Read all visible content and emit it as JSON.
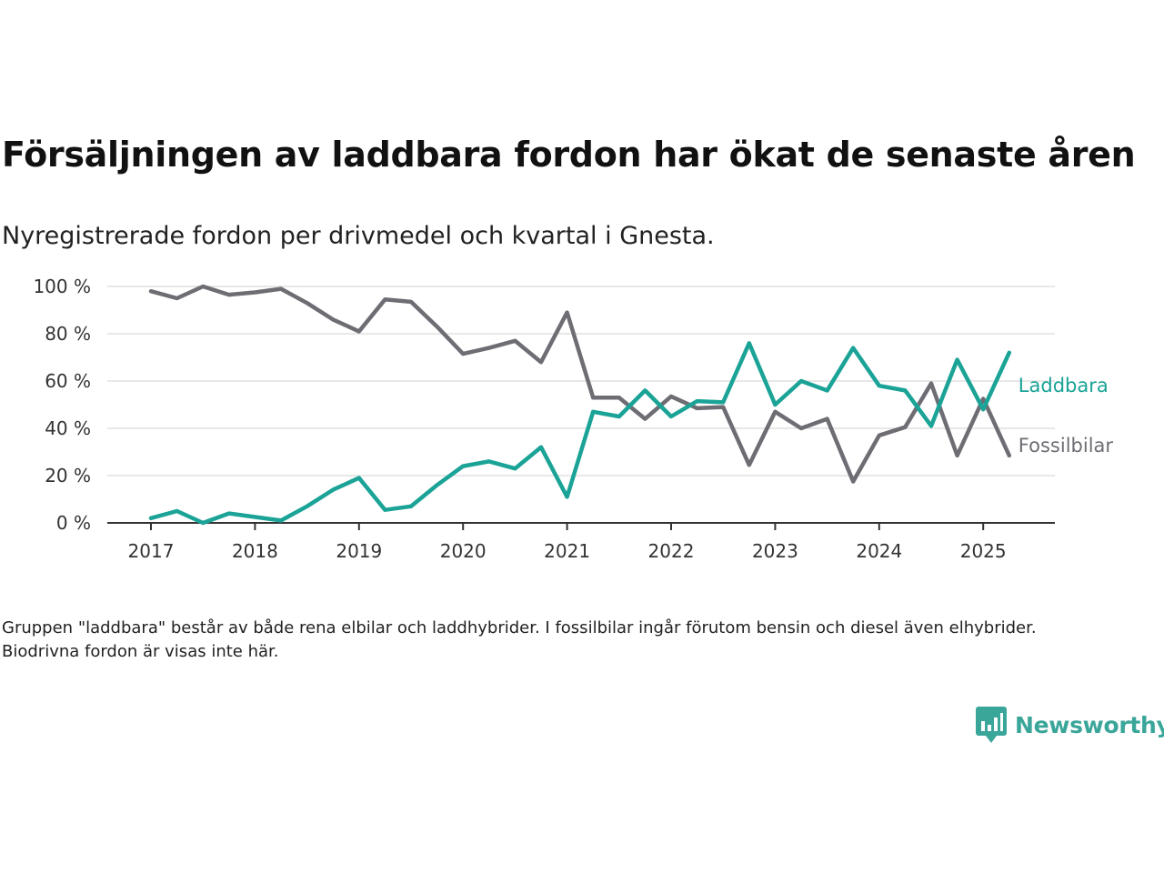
{
  "header": {
    "title": "Försäljningen av laddbara fordon har ökat de senaste åren",
    "subtitle": "Nyregistrerade fordon per drivmedel och kvartal i Gnesta."
  },
  "footer": {
    "note": "Gruppen \"laddbara\" består av både rena elbilar och laddhybrider. I fossilbilar ingår förutom bensin och diesel även elhybrider. Biodrivna fordon är visas inte här.",
    "brand": "Newsworthy",
    "brand_icon": "bar-chart-icon",
    "brand_color": "#3aa69a"
  },
  "chart_data": {
    "type": "line",
    "x": [
      "2017-Q1",
      "2017-Q2",
      "2017-Q3",
      "2017-Q4",
      "2018-Q1",
      "2018-Q2",
      "2018-Q3",
      "2018-Q4",
      "2019-Q1",
      "2019-Q2",
      "2019-Q3",
      "2019-Q4",
      "2020-Q1",
      "2020-Q2",
      "2020-Q3",
      "2020-Q4",
      "2021-Q1",
      "2021-Q2",
      "2021-Q3",
      "2021-Q4",
      "2022-Q1",
      "2022-Q2",
      "2022-Q3",
      "2022-Q4",
      "2023-Q1",
      "2023-Q2",
      "2023-Q3",
      "2023-Q4",
      "2024-Q1",
      "2024-Q2",
      "2024-Q3",
      "2024-Q4",
      "2025-Q1",
      "2025-Q2"
    ],
    "x_ticks": [
      "2017",
      "2018",
      "2019",
      "2020",
      "2021",
      "2022",
      "2023",
      "2024",
      "2025"
    ],
    "y_ticks": [
      "0 %",
      "20 %",
      "40 %",
      "60 %",
      "80 %",
      "100 %"
    ],
    "ylim": [
      0,
      100
    ],
    "grid": true,
    "series": [
      {
        "name": "Laddbara",
        "color": "#1aa396",
        "values": [
          2,
          5,
          0,
          4,
          2.5,
          1,
          7,
          14,
          19,
          5.5,
          7,
          16,
          24,
          26,
          23,
          32,
          11,
          47,
          45,
          56,
          45,
          51.5,
          51,
          76,
          50,
          60,
          56,
          74,
          58,
          56,
          41,
          69,
          48,
          72
        ]
      },
      {
        "name": "Fossilbilar",
        "color": "#6e6d74",
        "values": [
          98,
          95,
          100,
          96.5,
          97.5,
          99,
          93,
          86,
          81,
          94.5,
          93.5,
          83,
          71.5,
          74,
          77,
          68,
          89,
          53,
          53,
          44,
          53.5,
          48.5,
          49,
          24.5,
          47,
          40,
          44,
          17.5,
          37,
          40.5,
          59,
          28.5,
          52.5,
          28.5
        ]
      }
    ]
  }
}
